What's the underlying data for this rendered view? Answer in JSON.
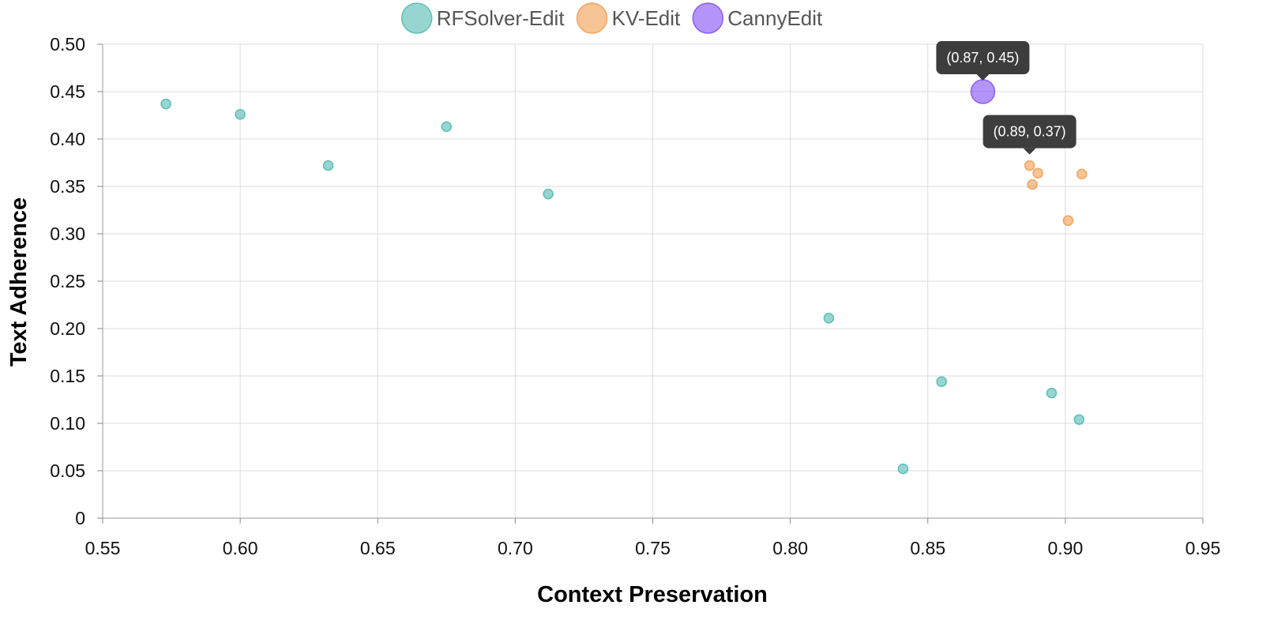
{
  "chart_data": {
    "type": "scatter",
    "xlabel": "Context Preservation",
    "ylabel": "Text Adherence",
    "xlim": [
      0.55,
      0.95
    ],
    "ylim": [
      0,
      0.5
    ],
    "x_ticks": [
      "0.55",
      "0.60",
      "0.65",
      "0.70",
      "0.75",
      "0.80",
      "0.85",
      "0.90",
      "0.95"
    ],
    "y_ticks": [
      "0",
      "0.05",
      "0.10",
      "0.15",
      "0.20",
      "0.25",
      "0.30",
      "0.35",
      "0.40",
      "0.45",
      "0.50"
    ],
    "grid": true,
    "legend_position": "top-center",
    "series": [
      {
        "name": "RFSolver-Edit",
        "color": "#5fbfb8",
        "points": [
          {
            "x": 0.573,
            "y": 0.437
          },
          {
            "x": 0.6,
            "y": 0.426
          },
          {
            "x": 0.632,
            "y": 0.372
          },
          {
            "x": 0.675,
            "y": 0.413
          },
          {
            "x": 0.712,
            "y": 0.342
          },
          {
            "x": 0.814,
            "y": 0.211
          },
          {
            "x": 0.841,
            "y": 0.052
          },
          {
            "x": 0.855,
            "y": 0.144
          },
          {
            "x": 0.895,
            "y": 0.132
          },
          {
            "x": 0.905,
            "y": 0.104
          }
        ]
      },
      {
        "name": "KV-Edit",
        "color": "#f2a55e",
        "points": [
          {
            "x": 0.887,
            "y": 0.372
          },
          {
            "x": 0.888,
            "y": 0.352
          },
          {
            "x": 0.89,
            "y": 0.364
          },
          {
            "x": 0.901,
            "y": 0.314
          },
          {
            "x": 0.906,
            "y": 0.363
          }
        ]
      },
      {
        "name": "CannyEdit",
        "color": "#8b5cf6",
        "points": [
          {
            "x": 0.87,
            "y": 0.45
          }
        ]
      }
    ],
    "annotations": [
      {
        "text": "(0.87, 0.45)",
        "x": 0.87,
        "y": 0.45
      },
      {
        "text": "(0.89, 0.37)",
        "x": 0.887,
        "y": 0.372
      }
    ]
  }
}
